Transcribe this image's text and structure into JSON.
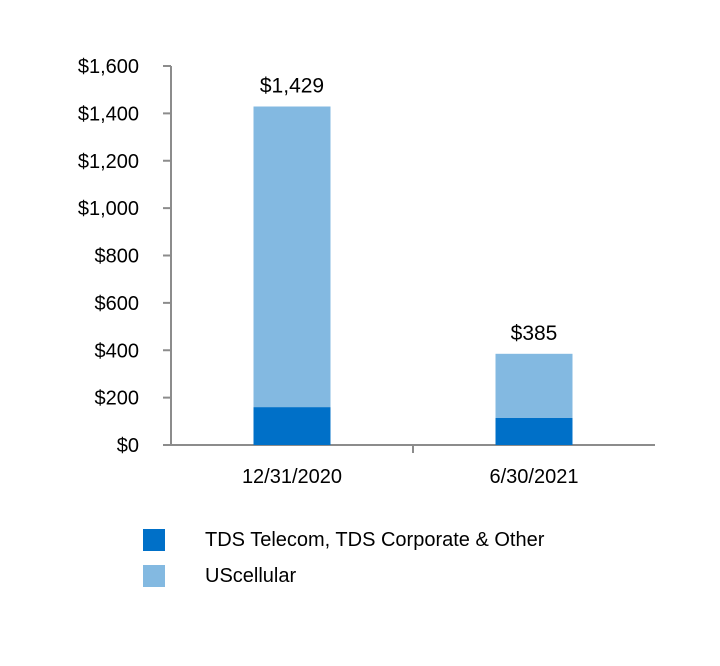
{
  "chart_data": {
    "type": "bar",
    "stacked": true,
    "categories": [
      "12/31/2020",
      "6/30/2021"
    ],
    "series": [
      {
        "name": "TDS Telecom, TDS Corporate & Other",
        "values": [
          160,
          115
        ],
        "color": "#0070c8"
      },
      {
        "name": "UScellular",
        "values": [
          1269,
          270
        ],
        "color": "#83b9e1"
      }
    ],
    "totals": [
      "$1,429",
      "$385"
    ],
    "total_values": [
      1429,
      385
    ],
    "yticks": [
      "$0",
      "$200",
      "$400",
      "$600",
      "$800",
      "$1,000",
      "$1,200",
      "$1,400",
      "$1,600"
    ],
    "ytick_values": [
      0,
      200,
      400,
      600,
      800,
      1000,
      1200,
      1400,
      1600
    ],
    "ylim": [
      0,
      1600
    ],
    "grid": false,
    "legend_position": "bottom-left"
  }
}
